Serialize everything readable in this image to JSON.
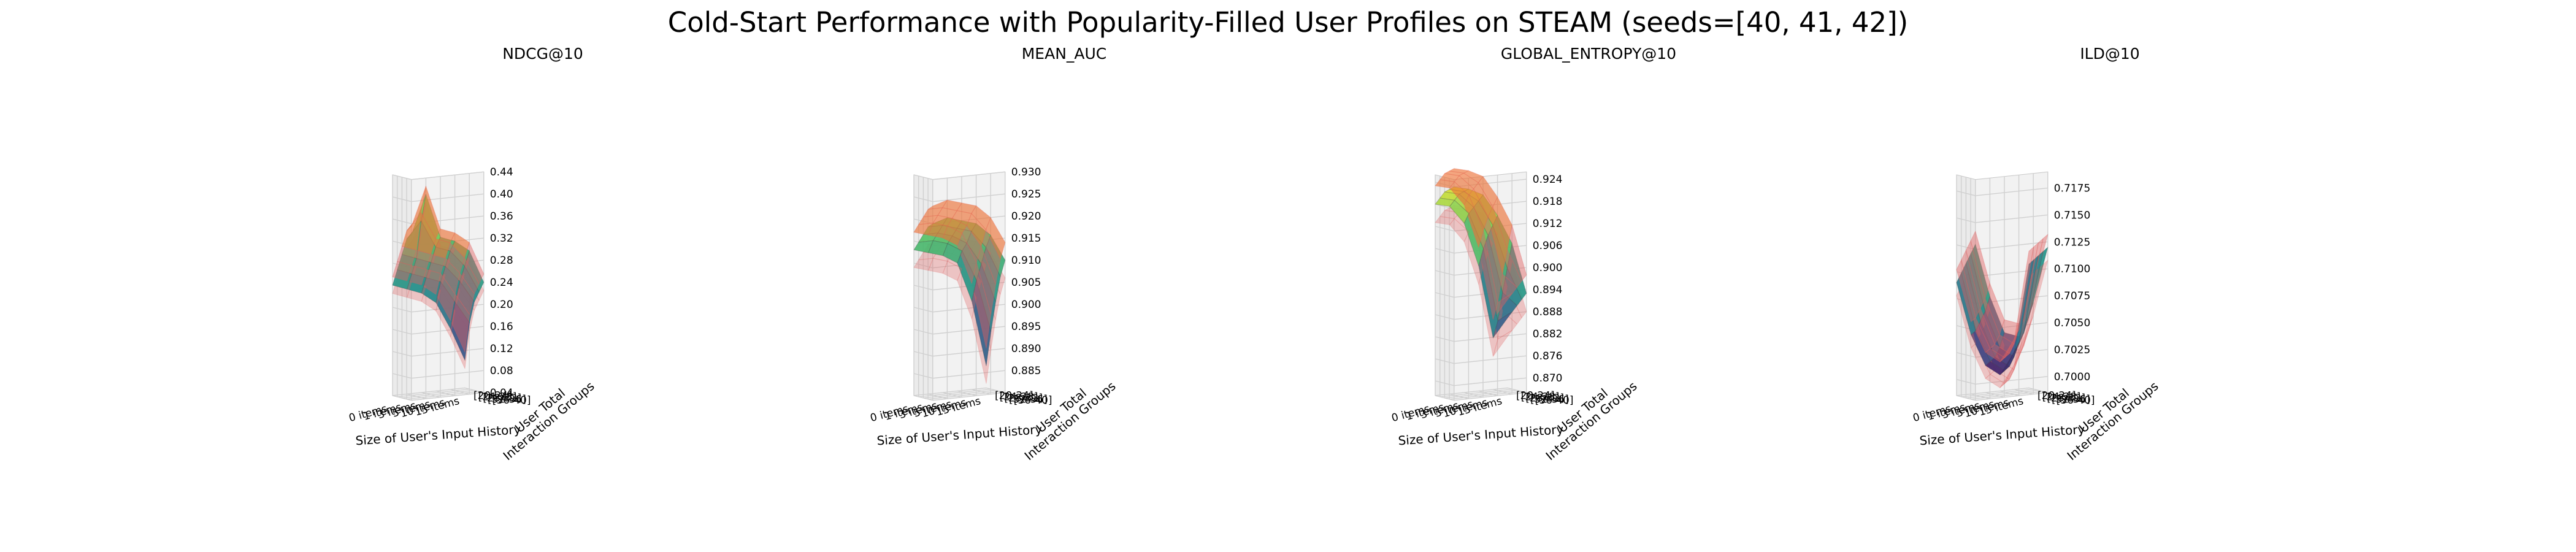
{
  "chart_data": {
    "title": "Cold-Start Performance with Popularity-Filled User Profiles on STEAM (seeds=[40, 41, 42])",
    "type": "surface3d",
    "x_categories": [
      "0 items",
      "1 items",
      "3 items",
      "5 items",
      "10 items",
      "15 items"
    ],
    "y_categories": [
      "[20-24]",
      "[24-28]",
      "[28-32]",
      "[32-36]",
      "[36-40]"
    ],
    "xlabel": "Size of User's Input History",
    "ylabel": "User Total\nInteraction Groups",
    "panels": [
      {
        "title": "NDCG@10",
        "zticks": [
          "0.04",
          "0.08",
          "0.12",
          "0.16",
          "0.20",
          "0.24",
          "0.28",
          "0.32",
          "0.36",
          "0.40",
          "0.44"
        ],
        "zlim": [
          0.04,
          0.44
        ],
        "surface": [
          [
            0.24,
            0.23,
            0.22,
            0.2,
            0.15,
            0.09
          ],
          [
            0.27,
            0.26,
            0.25,
            0.24,
            0.2,
            0.16
          ],
          [
            0.3,
            0.29,
            0.28,
            0.27,
            0.24,
            0.2
          ],
          [
            0.33,
            0.36,
            0.31,
            0.3,
            0.27,
            0.22
          ],
          [
            0.34,
            0.41,
            0.33,
            0.32,
            0.3,
            0.24
          ]
        ],
        "band": 0.015
      },
      {
        "title": "MEAN_AUC",
        "zticks": [
          "0.885",
          "0.890",
          "0.895",
          "0.900",
          "0.905",
          "0.910",
          "0.915",
          "0.920",
          "0.925",
          "0.930"
        ],
        "zlim": [
          0.88,
          0.93
        ],
        "surface": [
          [
            0.913,
            0.912,
            0.911,
            0.909,
            0.9,
            0.885
          ],
          [
            0.915,
            0.915,
            0.914,
            0.912,
            0.905,
            0.893
          ],
          [
            0.917,
            0.917,
            0.916,
            0.914,
            0.909,
            0.9
          ],
          [
            0.919,
            0.919,
            0.918,
            0.917,
            0.913,
            0.906
          ],
          [
            0.92,
            0.921,
            0.92,
            0.919,
            0.916,
            0.91
          ]
        ],
        "band": 0.004
      },
      {
        "title": "GLOBAL_ENTROPY@10",
        "zticks": [
          "0.870",
          "0.876",
          "0.882",
          "0.888",
          "0.894",
          "0.900",
          "0.906",
          "0.912",
          "0.918",
          "0.924"
        ],
        "zlim": [
          0.866,
          0.926
        ],
        "surface": [
          [
            0.918,
            0.917,
            0.912,
            0.9,
            0.88,
            0.885
          ],
          [
            0.92,
            0.919,
            0.915,
            0.905,
            0.885,
            0.887
          ],
          [
            0.922,
            0.921,
            0.917,
            0.909,
            0.893,
            0.889
          ],
          [
            0.923,
            0.922,
            0.919,
            0.912,
            0.9,
            0.891
          ],
          [
            0.924,
            0.923,
            0.921,
            0.915,
            0.907,
            0.893
          ]
        ],
        "band": 0.005
      },
      {
        "title": "ILD@10",
        "zticks": [
          "0.7000",
          "0.7025",
          "0.7050",
          "0.7075",
          "0.7100",
          "0.7125",
          "0.7150",
          "0.7175"
        ],
        "zlim": [
          0.6985,
          0.719
        ],
        "surface": [
          [
            0.709,
            0.704,
            0.701,
            0.7,
            0.702,
            0.71
          ],
          [
            0.71,
            0.7045,
            0.7015,
            0.7005,
            0.703,
            0.7105
          ],
          [
            0.711,
            0.7055,
            0.702,
            0.701,
            0.704,
            0.711
          ],
          [
            0.712,
            0.7065,
            0.703,
            0.702,
            0.7055,
            0.7115
          ],
          [
            0.713,
            0.708,
            0.7045,
            0.704,
            0.707,
            0.712
          ]
        ],
        "band": 0.0012
      }
    ]
  },
  "colors": {
    "band": "#e06060",
    "colormap": [
      "#440154",
      "#3b528b",
      "#21918c",
      "#5ec962",
      "#fde725"
    ],
    "overlay": "#f58518"
  }
}
